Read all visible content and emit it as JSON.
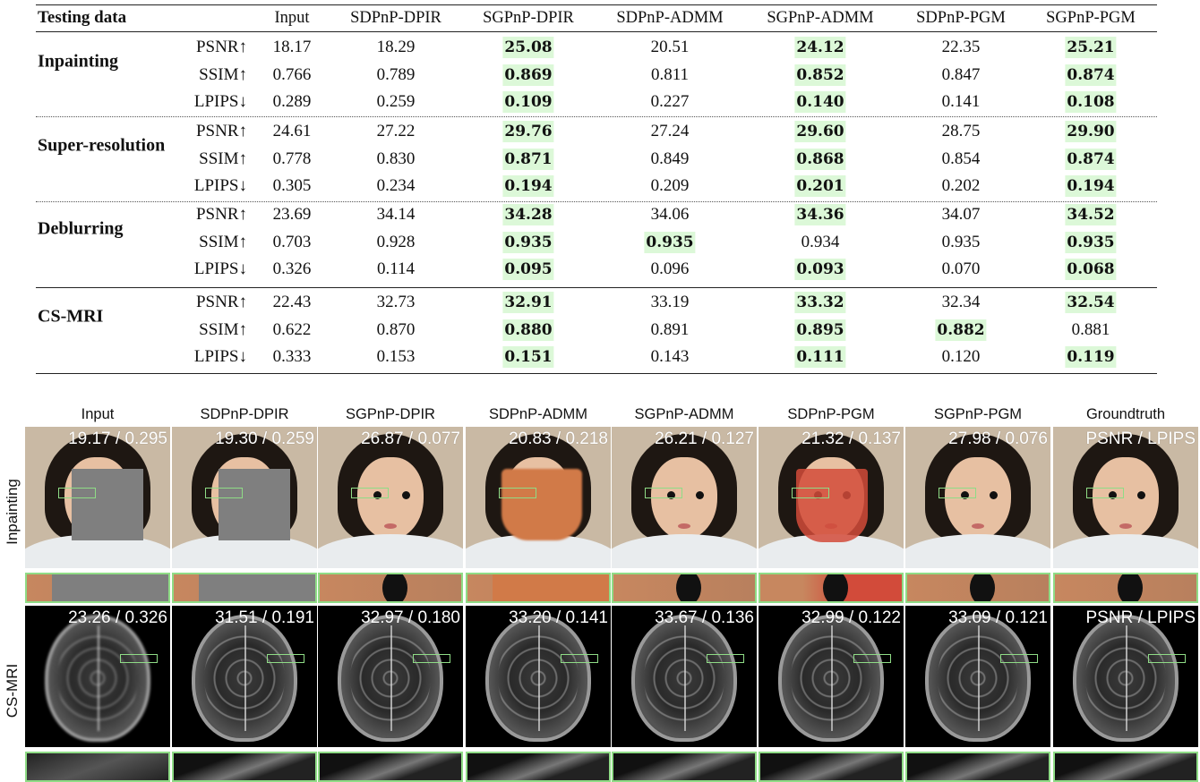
{
  "table": {
    "header_label": "Testing data",
    "columns": [
      "Input",
      "SDPnP-DPIR",
      "SGPnP-DPIR",
      "SDPnP-ADMM",
      "SGPnP-ADMM",
      "SDPnP-PGM",
      "SGPnP-PGM"
    ],
    "highlight_color": "#dcf8d8",
    "groups": [
      {
        "name": "Inpainting",
        "rows": [
          {
            "metric": "PSNR↑",
            "values": [
              "18.17",
              "18.29",
              "25.08",
              "20.51",
              "24.12",
              "22.35",
              "25.21"
            ],
            "best": [
              false,
              false,
              true,
              false,
              true,
              false,
              true
            ]
          },
          {
            "metric": "SSIM↑",
            "values": [
              "0.766",
              "0.789",
              "0.869",
              "0.811",
              "0.852",
              "0.847",
              "0.874"
            ],
            "best": [
              false,
              false,
              true,
              false,
              true,
              false,
              true
            ]
          },
          {
            "metric": "LPIPS↓",
            "values": [
              "0.289",
              "0.259",
              "0.109",
              "0.227",
              "0.140",
              "0.141",
              "0.108"
            ],
            "best": [
              false,
              false,
              true,
              false,
              true,
              false,
              true
            ]
          }
        ]
      },
      {
        "name": "Super-resolution",
        "rows": [
          {
            "metric": "PSNR↑",
            "values": [
              "24.61",
              "27.22",
              "29.76",
              "27.24",
              "29.60",
              "28.75",
              "29.90"
            ],
            "best": [
              false,
              false,
              true,
              false,
              true,
              false,
              true
            ]
          },
          {
            "metric": "SSIM↑",
            "values": [
              "0.778",
              "0.830",
              "0.871",
              "0.849",
              "0.868",
              "0.854",
              "0.874"
            ],
            "best": [
              false,
              false,
              true,
              false,
              true,
              false,
              true
            ]
          },
          {
            "metric": "LPIPS↓",
            "values": [
              "0.305",
              "0.234",
              "0.194",
              "0.209",
              "0.201",
              "0.202",
              "0.194"
            ],
            "best": [
              false,
              false,
              true,
              false,
              true,
              false,
              true
            ]
          }
        ]
      },
      {
        "name": "Deblurring",
        "rows": [
          {
            "metric": "PSNR↑",
            "values": [
              "23.69",
              "34.14",
              "34.28",
              "34.06",
              "34.36",
              "34.07",
              "34.52"
            ],
            "best": [
              false,
              false,
              true,
              false,
              true,
              false,
              true
            ]
          },
          {
            "metric": "SSIM↑",
            "values": [
              "0.703",
              "0.928",
              "0.935",
              "0.935",
              "0.934",
              "0.935",
              "0.935"
            ],
            "best": [
              false,
              false,
              true,
              true,
              false,
              false,
              true
            ]
          },
          {
            "metric": "LPIPS↓",
            "values": [
              "0.326",
              "0.114",
              "0.095",
              "0.096",
              "0.093",
              "0.070",
              "0.068"
            ],
            "best": [
              false,
              false,
              true,
              false,
              true,
              false,
              true
            ]
          }
        ]
      },
      {
        "name": "CS-MRI",
        "rows": [
          {
            "metric": "PSNR↑",
            "values": [
              "22.43",
              "32.73",
              "32.91",
              "33.19",
              "33.32",
              "32.34",
              "32.54"
            ],
            "best": [
              false,
              false,
              true,
              false,
              true,
              false,
              true
            ]
          },
          {
            "metric": "SSIM↑",
            "values": [
              "0.622",
              "0.870",
              "0.880",
              "0.891",
              "0.895",
              "0.882",
              "0.881"
            ],
            "best": [
              false,
              false,
              true,
              false,
              true,
              true,
              false
            ]
          },
          {
            "metric": "LPIPS↓",
            "values": [
              "0.333",
              "0.153",
              "0.151",
              "0.143",
              "0.111",
              "0.120",
              "0.119"
            ],
            "best": [
              false,
              false,
              true,
              false,
              true,
              false,
              true
            ]
          }
        ]
      }
    ]
  },
  "figure": {
    "columns": [
      "Input",
      "SDPnP-DPIR",
      "SGPnP-DPIR",
      "SDPnP-ADMM",
      "SGPnP-ADMM",
      "SDPnP-PGM",
      "SGPnP-PGM",
      "Groundtruth"
    ],
    "rows": [
      {
        "label": "Inpainting",
        "kind": "face",
        "scores": [
          "19.17 / 0.295",
          "19.30 / 0.259",
          "26.87 / 0.077",
          "20.83 / 0.218",
          "26.21 / 0.127",
          "21.32 / 0.137",
          "27.98 / 0.076",
          "PSNR / LPIPS"
        ],
        "mask": [
          "gray",
          "gray",
          "none",
          "orange",
          "none",
          "red",
          "none",
          "none"
        ]
      },
      {
        "label": "CS-MRI",
        "kind": "mri",
        "scores": [
          "23.26 / 0.326",
          "31.51 / 0.191",
          "32.97 / 0.180",
          "33.20 / 0.141",
          "33.67 / 0.136",
          "32.99 / 0.122",
          "33.09 / 0.121",
          "PSNR / LPIPS"
        ]
      }
    ],
    "mask_colors": {
      "gray": "#7f7f7f",
      "orange": "#d17a48",
      "red": "#d24b3a"
    },
    "zoom_box_color": "#8fdc86"
  }
}
